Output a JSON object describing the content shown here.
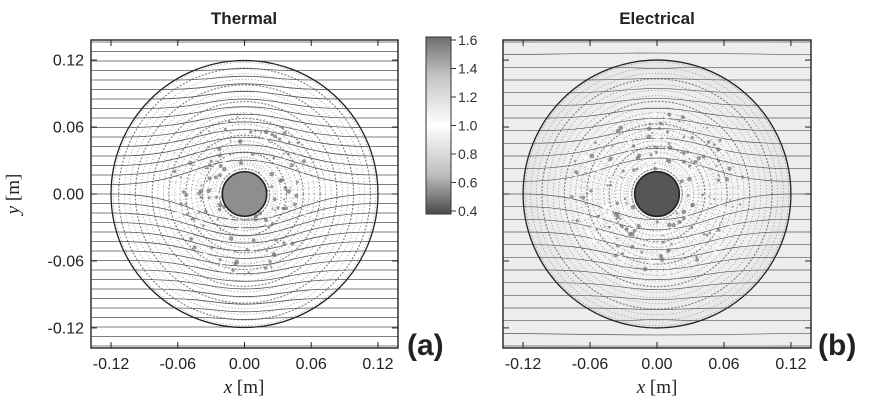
{
  "panels": [
    {
      "title": "Thermal",
      "label": "(a)"
    },
    {
      "title": "Electrical",
      "label": "(b)"
    }
  ],
  "axes": {
    "xlabel_var": "x",
    "xlabel_unit": "[m]",
    "ylabel_var": "y",
    "ylabel_unit": "[m]",
    "xticks": [
      "-0.12",
      "-0.06",
      "0.00",
      "0.06",
      "0.12"
    ],
    "yticks": [
      "0.12",
      "0.06",
      "0.00",
      "-0.06",
      "-0.12"
    ],
    "range": [
      -0.138,
      0.138
    ]
  },
  "colorbar": {
    "ticks": [
      "1.6",
      "1.4",
      "1.2",
      "1.0",
      "0.8",
      "0.6",
      "0.4"
    ],
    "range": [
      0.4,
      1.6
    ]
  },
  "colors": {
    "frame": "#222222",
    "stream": "#555555",
    "ring": "#666666",
    "core_thermal": "#8e8e8e",
    "core_electrical": "#555555"
  }
}
